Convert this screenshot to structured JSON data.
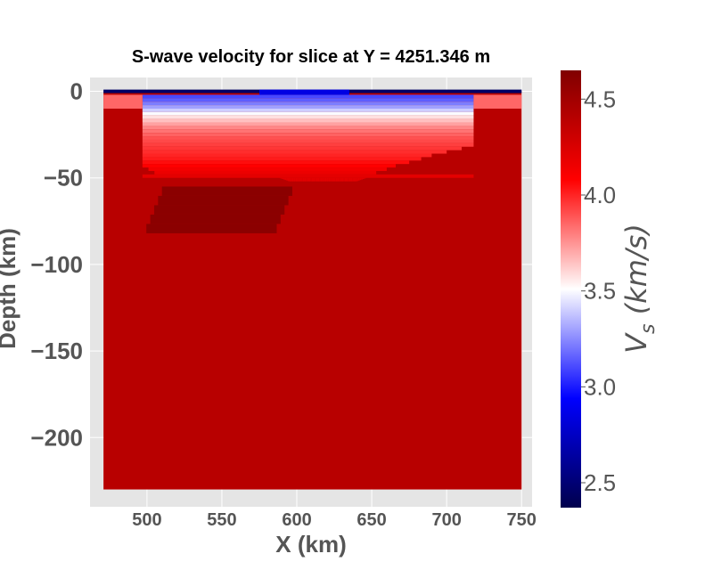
{
  "chart_data": {
    "type": "heatmap",
    "title": "S-wave velocity for slice at Y = 4251.346 m",
    "xlabel": "X (km)",
    "ylabel": "Depth (km)",
    "xlim": [
      462,
      757
    ],
    "ylim": [
      -240,
      8
    ],
    "x_ticks": [
      500,
      550,
      600,
      650,
      700,
      750
    ],
    "x_tick_labels": [
      "500",
      "550",
      "600",
      "650",
      "700",
      "750"
    ],
    "y_ticks": [
      0,
      -50,
      -100,
      -150,
      -200
    ],
    "y_tick_labels": [
      "0",
      "−50",
      "−100",
      "−150",
      "−200"
    ],
    "grid": true,
    "colormap": "seismic",
    "colorbar": {
      "label": "V_s (km/s)",
      "label_main": "V",
      "label_sub": "s",
      "label_units": " (km/s)",
      "range": [
        2.37,
        4.65
      ],
      "ticks": [
        2.5,
        3.0,
        3.5,
        4.0,
        4.5
      ],
      "tick_labels": [
        "2.5",
        "3.0",
        "3.5",
        "4.0",
        "4.5"
      ]
    },
    "data_extent": {
      "x": [
        471,
        750
      ],
      "depth": [
        0,
        -230
      ]
    },
    "background_velocity": 4.4,
    "regions": [
      {
        "name": "surface-layer",
        "x": [
          471,
          750
        ],
        "depth": [
          1,
          -1
        ],
        "vs": 2.45
      },
      {
        "name": "surface-layer-slow-patch",
        "x": [
          575,
          635
        ],
        "depth": [
          1,
          -2
        ],
        "vs": 2.85
      },
      {
        "name": "margin-layer-left",
        "x": [
          471,
          497
        ],
        "depth": [
          -2,
          -10
        ],
        "vs": 3.85
      },
      {
        "name": "margin-layer-right",
        "x": [
          718,
          750
        ],
        "depth": [
          -2,
          -10
        ],
        "vs": 3.85
      },
      {
        "name": "deep-high-velocity-body",
        "x_top": [
          510,
          597
        ],
        "x_bottom": [
          497,
          584
        ],
        "depth": [
          -55,
          -82
        ],
        "vs": 4.6
      }
    ],
    "basin": {
      "x_left": 497,
      "x_right": 718,
      "layer_velocities": [
        3.1,
        3.15,
        3.22,
        3.3,
        3.4,
        3.5,
        3.58,
        3.65,
        3.72,
        3.78,
        3.82,
        3.86,
        3.9,
        3.92,
        3.94,
        3.96,
        3.98,
        4.0,
        4.02,
        4.05,
        4.08,
        4.12,
        4.16,
        4.2
      ],
      "bottom_profile": {
        "x": [
          497,
          505,
          515,
          585,
          595,
          640,
          650,
          660,
          670,
          680,
          690,
          700,
          710,
          718
        ],
        "depth": [
          -44,
          -48,
          -49,
          -49,
          -52,
          -52,
          -49,
          -46,
          -43,
          -41,
          -38,
          -36,
          -34,
          -33
        ]
      }
    }
  }
}
